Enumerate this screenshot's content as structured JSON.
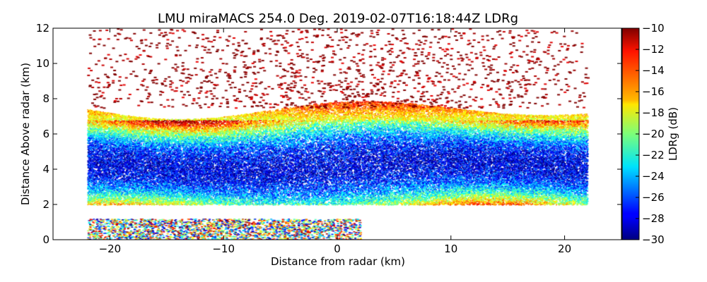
{
  "chart_data": {
    "type": "heatmap",
    "subtype": "radar RHI scan",
    "title": "LMU miraMACS 254.0 Deg. 2019-02-07T16:18:44Z  LDRg",
    "xlabel": "Distance from radar (km)",
    "ylabel": "Distance Above radar  (km)",
    "xlim": [
      -25,
      25
    ],
    "ylim": [
      0,
      12
    ],
    "x_ticks": [
      -20,
      -10,
      0,
      10,
      20
    ],
    "y_ticks": [
      0,
      2,
      4,
      6,
      8,
      10,
      12
    ],
    "grid": false,
    "colorbar": {
      "label": "LDRg (dB)",
      "range": [
        -30,
        -10
      ],
      "ticks": [
        -10,
        -12,
        -14,
        -16,
        -18,
        -20,
        -22,
        -24,
        -26,
        -28,
        -30
      ],
      "colormap": "jet"
    },
    "field_description": {
      "scan_extent_km": [
        -22,
        22
      ],
      "cloud_core_height_km": [
        2.5,
        6.0
      ],
      "core_ldr_db": -28,
      "edge_ldr_db": -18,
      "cloud_top_height_km": 8.5,
      "top_ldr_db": -11,
      "near_surface_clutter_height_km": [
        0,
        1.2
      ]
    }
  }
}
